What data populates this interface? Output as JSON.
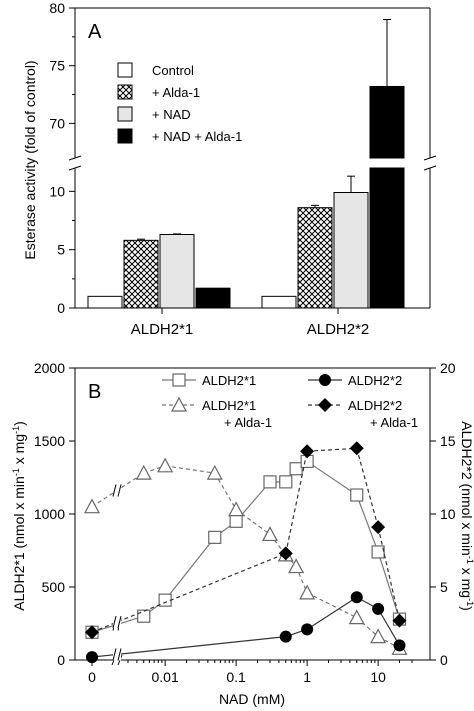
{
  "chart_data": [
    {
      "type": "bar",
      "panel_label": "A",
      "ylabel": "Esterase activity (fold of control)",
      "categories": [
        "ALDH2*1",
        "ALDH2*2"
      ],
      "series": [
        {
          "name": "Control",
          "values": [
            1,
            1
          ],
          "errors": [
            0,
            0
          ],
          "fill": "white"
        },
        {
          "name": "+ Alda-1",
          "values": [
            5.8,
            8.6
          ],
          "errors": [
            0.1,
            0.2
          ],
          "fill": "crosshatch"
        },
        {
          "name": "+ NAD",
          "values": [
            6.3,
            9.9
          ],
          "errors": [
            0.05,
            1.4
          ],
          "fill": "lightgray"
        },
        {
          "name": "+ NAD + Alda-1",
          "values": [
            1.7,
            73.2
          ],
          "errors": [
            0,
            5.8
          ],
          "fill": "black"
        }
      ],
      "ylim_lower": [
        0,
        12
      ],
      "ylim_upper": [
        67,
        80
      ],
      "yticks_lower": [
        "0",
        "5",
        "10"
      ],
      "yticks_upper": [
        "70",
        "75",
        "80"
      ],
      "axis_break": true,
      "legend_position": "upper-left"
    },
    {
      "type": "line",
      "panel_label": "B",
      "xlabel": "NAD (mM)",
      "ylabel_left": "ALDH2*1 (nmol x min",
      "ylabel_left_sup1": "-1",
      "ylabel_left_mid": " x mg",
      "ylabel_left_sup2": "-1",
      "ylabel_left_end": ")",
      "ylabel_right": "ALDH2*2 (nmol x min",
      "ylabel_right_sup1": "-1",
      "ylabel_right_mid": " x mg",
      "ylabel_right_sup2": "-1",
      "ylabel_right_end": ")",
      "x_scale": "log with zero break",
      "xticks": [
        "0",
        "0.01",
        "0.1",
        "1",
        "10"
      ],
      "ylim_left": [
        0,
        2000
      ],
      "yticks_left": [
        "0",
        "500",
        "1000",
        "1500",
        "2000"
      ],
      "ylim_right": [
        0,
        20
      ],
      "yticks_right": [
        "0",
        "5",
        "10",
        "15",
        "20"
      ],
      "series": [
        {
          "name": "ALDH2*1",
          "axis": "left",
          "line": "solid",
          "marker": "open-square",
          "x": [
            0,
            0.005,
            0.01,
            0.05,
            0.1,
            0.3,
            0.5,
            0.7,
            1,
            5,
            10,
            20
          ],
          "y": [
            190,
            300,
            410,
            840,
            950,
            1220,
            1220,
            1310,
            1360,
            1130,
            740,
            280
          ]
        },
        {
          "name": "ALDH2*1",
          "name_line2": "+ Alda-1",
          "axis": "left",
          "line": "dashed",
          "marker": "open-triangle",
          "x": [
            0,
            0.005,
            0.01,
            0.05,
            0.1,
            0.3,
            0.5,
            0.7,
            1,
            5,
            10,
            20
          ],
          "y": [
            1050,
            1280,
            1330,
            1280,
            1030,
            860,
            720,
            640,
            460,
            290,
            160,
            80
          ]
        },
        {
          "name": "ALDH2*2",
          "axis": "right",
          "line": "solid",
          "marker": "filled-circle",
          "x": [
            0,
            0.5,
            1,
            5,
            10,
            20
          ],
          "y": [
            0.2,
            1.6,
            2.1,
            4.3,
            3.5,
            1.0
          ]
        },
        {
          "name": "ALDH2*2",
          "name_line2": "+ Alda-1",
          "axis": "right",
          "line": "dashed",
          "marker": "filled-diamond",
          "x": [
            0,
            0.5,
            1,
            5,
            10,
            20
          ],
          "y": [
            1.9,
            7.3,
            14.3,
            14.5,
            9.1,
            2.7
          ]
        }
      ],
      "legend_position": "top"
    }
  ]
}
